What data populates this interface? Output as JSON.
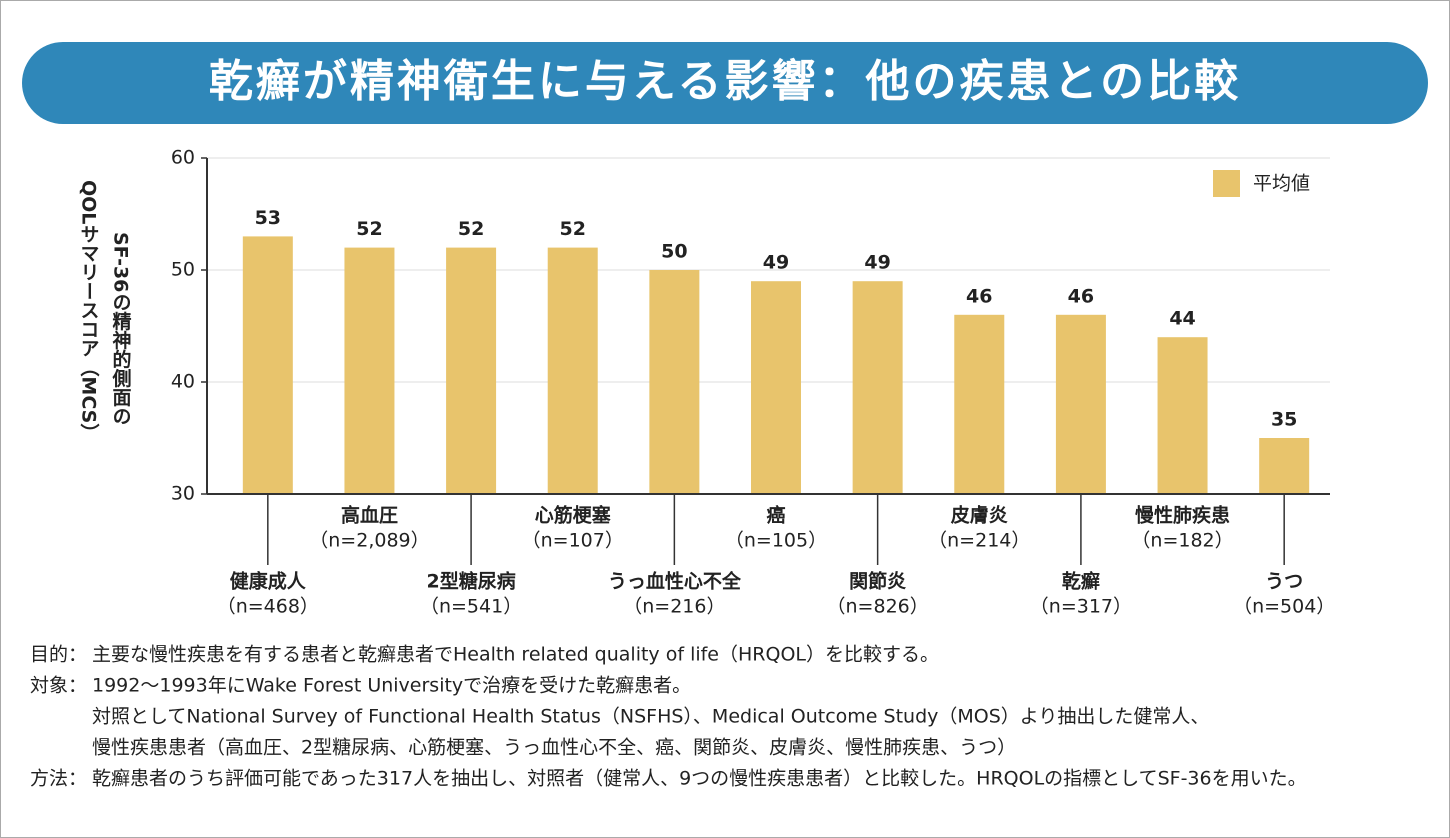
{
  "chart_data": {
    "type": "bar",
    "title": "乾癬が精神衛生に与える影響：他の疾患との比較",
    "categories": [
      "健康成人",
      "高血圧",
      "2型糖尿病",
      "心筋梗塞",
      "うっ血性心不全",
      "癌",
      "関節炎",
      "皮膚炎",
      "乾癬",
      "慢性肺疾患",
      "うつ"
    ],
    "category_notes": [
      "（n=468）",
      "（n=2,089）",
      "（n=541）",
      "（n=107）",
      "（n=216）",
      "（n=105）",
      "（n=826）",
      "（n=214）",
      "（n=317）",
      "（n=182）",
      "（n=504）"
    ],
    "series": [
      {
        "name": "平均値",
        "color": "#e8c46c",
        "values": [
          53,
          52,
          52,
          52,
          50,
          49,
          49,
          46,
          46,
          44,
          35
        ]
      }
    ],
    "ylim": [
      30,
      60
    ],
    "yticks": [
      30,
      40,
      50,
      60
    ],
    "grid": true,
    "legend": "upper right",
    "y_label_lines": [
      "QOLサマリースコア（MCS）",
      "SF-36の精神的側面の"
    ]
  },
  "notes": [
    {
      "label": "目的：",
      "lines": [
        "主要な慢性疾患を有する患者と乾癬患者でHealth related quality of life（HRQOL）を比較する。"
      ]
    },
    {
      "label": "対象：",
      "lines": [
        "1992～1993年にWake Forest Universityで治療を受けた乾癬患者。",
        "対照としてNational Survey of Functional Health Status（NSFHS）、Medical Outcome Study（MOS）より抽出した健常人、",
        "慢性疾患患者（高血圧、2型糖尿病、心筋梗塞、うっ血性心不全、癌、関節炎、皮膚炎、慢性肺疾患、うつ）"
      ]
    },
    {
      "label": "方法：",
      "lines": [
        "乾癬患者のうち評価可能であった317人を抽出し、対照者（健常人、9つの慢性疾患患者）と比較した。HRQOLの指標としてSF-36を用いた。"
      ]
    }
  ]
}
